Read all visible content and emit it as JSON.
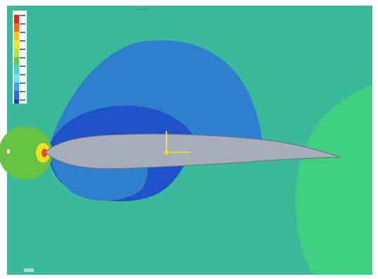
{
  "viewer": {
    "colors": {
      "far_field": "#3bb99b",
      "high_region": "#3fcf80",
      "low_1": "#2f7fcf",
      "low_2": "#1f52c8",
      "stagnation_outer": "#66c341",
      "stagnation_inner": "#f2e020",
      "stagnation_core": "#e64a17",
      "airfoil_fill": "#a8adba",
      "airfoil_edge": "#6a6f80",
      "axis_x": "#d6dc44",
      "axis_y": "#e1e04b"
    }
  },
  "legend": {
    "colors": [
      "#d42b1e",
      "#ef6a1e",
      "#f5c21e",
      "#e8e83a",
      "#b7e24a",
      "#64c95a",
      "#49d4c2",
      "#6fe7f0",
      "#3aa8ea",
      "#2f68d8",
      "#1c3fbc"
    ]
  }
}
